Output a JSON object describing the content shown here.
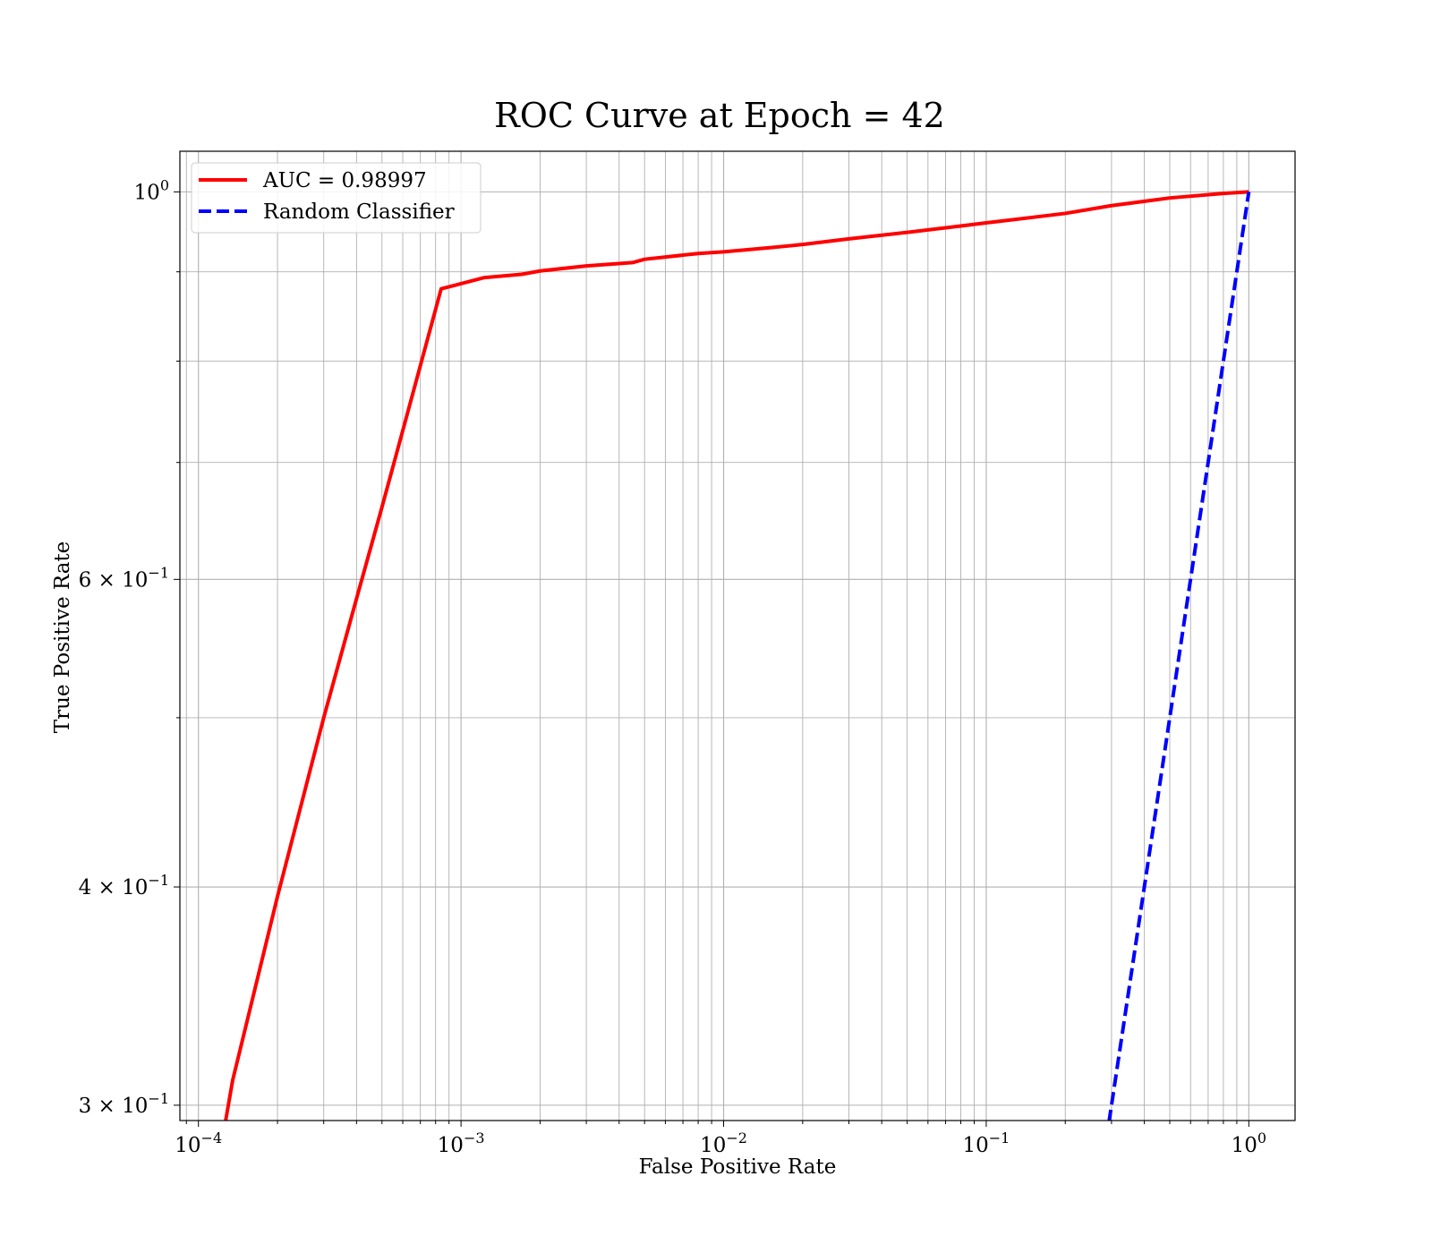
{
  "chart_data": {
    "type": "line",
    "title": "ROC Curve at Epoch = 42",
    "xlabel": "False Positive Rate",
    "ylabel": "True Positive Rate",
    "xscale": "log",
    "yscale": "log",
    "xlim": [
      8.5e-05,
      1.5
    ],
    "ylim": [
      0.294,
      1.055
    ],
    "grid": true,
    "legend_position": "top-left",
    "x_ticks": [
      {
        "value": 0.0001,
        "base": "10",
        "exp": "−4"
      },
      {
        "value": 0.001,
        "base": "10",
        "exp": "−3"
      },
      {
        "value": 0.01,
        "base": "10",
        "exp": "−2"
      },
      {
        "value": 0.1,
        "base": "10",
        "exp": "−1"
      },
      {
        "value": 1,
        "base": "10",
        "exp": "0"
      }
    ],
    "y_ticks": [
      {
        "value": 1.0,
        "base": "10",
        "exp": "0"
      },
      {
        "value": 0.6,
        "base": "6 × 10",
        "exp": "−1"
      },
      {
        "value": 0.4,
        "base": "4 × 10",
        "exp": "−1"
      },
      {
        "value": 0.3,
        "base": "3 × 10",
        "exp": "−1"
      }
    ],
    "y_minor_grid": [
      0.9,
      0.8,
      0.7,
      0.5
    ],
    "series": [
      {
        "name": "AUC = 0.98997",
        "color": "#ff0000",
        "dash": "solid",
        "x": [
          0.000125,
          0.000135,
          0.0002,
          0.0003,
          0.0004,
          0.0005,
          0.0006,
          0.00084,
          0.00122,
          0.0017,
          0.002,
          0.003,
          0.0045,
          0.005,
          0.008,
          0.01,
          0.015,
          0.02,
          0.03,
          0.05,
          0.08,
          0.1,
          0.2,
          0.3,
          0.5,
          0.8,
          1.0
        ],
        "y": [
          0.29,
          0.31,
          0.395,
          0.5,
          0.585,
          0.66,
          0.73,
          0.88,
          0.893,
          0.897,
          0.901,
          0.907,
          0.911,
          0.915,
          0.922,
          0.924,
          0.929,
          0.933,
          0.94,
          0.948,
          0.956,
          0.96,
          0.972,
          0.982,
          0.992,
          0.998,
          1.0
        ]
      },
      {
        "name": "Random Classifier",
        "color": "#0000ff",
        "dash": "dashed",
        "x": [
          0.28,
          0.3,
          0.4,
          0.5,
          0.6,
          0.7,
          0.8,
          0.9,
          1.0
        ],
        "y": [
          0.28,
          0.3,
          0.4,
          0.5,
          0.6,
          0.7,
          0.8,
          0.9,
          1.0
        ]
      }
    ]
  }
}
